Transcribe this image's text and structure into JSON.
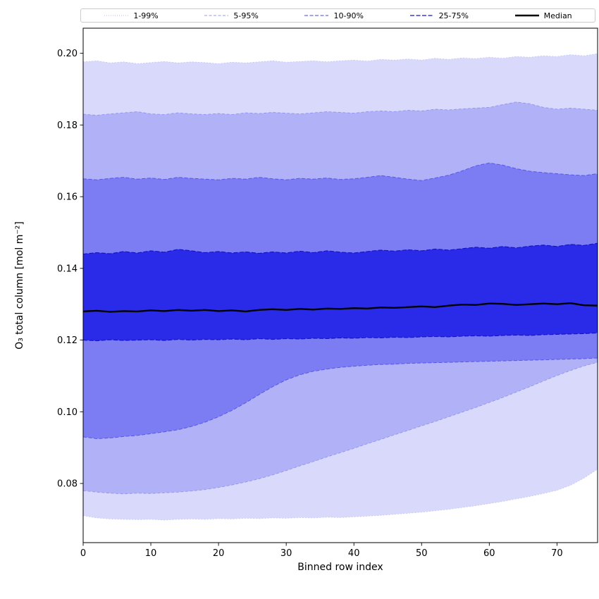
{
  "chart_data": {
    "type": "area",
    "title": "",
    "xlabel": "Binned row index",
    "ylabel": "O₃ total column [mol m⁻²]",
    "axes": {
      "xlim": [
        0,
        76
      ],
      "ylim": [
        0.0635,
        0.207
      ],
      "xticks": [
        0,
        10,
        20,
        30,
        40,
        50,
        60,
        70
      ],
      "yticks": [
        0.08,
        0.1,
        0.12,
        0.14,
        0.16,
        0.18,
        0.2
      ],
      "ytick_labels": [
        "0.08",
        "0.10",
        "0.12",
        "0.14",
        "0.16",
        "0.18",
        "0.20"
      ],
      "grid": false,
      "legend_position": "top"
    },
    "x": [
      0,
      2,
      4,
      6,
      8,
      10,
      12,
      14,
      16,
      18,
      20,
      22,
      24,
      26,
      28,
      30,
      32,
      34,
      36,
      38,
      40,
      42,
      44,
      46,
      48,
      50,
      52,
      54,
      56,
      58,
      60,
      62,
      64,
      66,
      68,
      70,
      72,
      74,
      76
    ],
    "percentiles": {
      "p01": [
        0.071,
        0.0704,
        0.0701,
        0.07,
        0.0699,
        0.07,
        0.0698,
        0.07,
        0.0701,
        0.07,
        0.0702,
        0.0701,
        0.0703,
        0.0702,
        0.0704,
        0.0703,
        0.0705,
        0.0704,
        0.0706,
        0.0705,
        0.0707,
        0.0709,
        0.0711,
        0.0714,
        0.0717,
        0.072,
        0.0724,
        0.0728,
        0.0733,
        0.0738,
        0.0744,
        0.075,
        0.0757,
        0.0764,
        0.0772,
        0.0781,
        0.0795,
        0.0815,
        0.084
      ],
      "p05": [
        0.078,
        0.0776,
        0.0773,
        0.0771,
        0.0773,
        0.0772,
        0.0774,
        0.0776,
        0.0779,
        0.0783,
        0.0789,
        0.0796,
        0.0804,
        0.0813,
        0.0824,
        0.0836,
        0.0849,
        0.0861,
        0.0874,
        0.0886,
        0.0898,
        0.0911,
        0.0923,
        0.0936,
        0.0948,
        0.0961,
        0.0973,
        0.0986,
        0.0999,
        0.1012,
        0.1026,
        0.104,
        0.1055,
        0.107,
        0.1086,
        0.1101,
        0.1115,
        0.1128,
        0.1138
      ],
      "p10": [
        0.093,
        0.0925,
        0.0927,
        0.0931,
        0.0934,
        0.0939,
        0.0944,
        0.095,
        0.0959,
        0.0971,
        0.0986,
        0.1004,
        0.1025,
        0.1048,
        0.107,
        0.1089,
        0.1103,
        0.1113,
        0.1119,
        0.1124,
        0.1127,
        0.113,
        0.1132,
        0.1133,
        0.1135,
        0.1136,
        0.1137,
        0.1138,
        0.1139,
        0.114,
        0.1141,
        0.1142,
        0.1143,
        0.1144,
        0.1145,
        0.1146,
        0.1147,
        0.1148,
        0.115
      ],
      "p25": [
        0.12,
        0.1198,
        0.1201,
        0.1199,
        0.12,
        0.1201,
        0.1199,
        0.1202,
        0.12,
        0.1202,
        0.1201,
        0.1203,
        0.1201,
        0.1204,
        0.1202,
        0.1204,
        0.1203,
        0.1205,
        0.1204,
        0.1206,
        0.1205,
        0.1207,
        0.1206,
        0.1208,
        0.1207,
        0.1209,
        0.121,
        0.1209,
        0.1211,
        0.1212,
        0.1211,
        0.1213,
        0.1214,
        0.1213,
        0.1215,
        0.1216,
        0.1217,
        0.1218,
        0.122
      ],
      "p75": [
        0.144,
        0.1444,
        0.1441,
        0.1447,
        0.1443,
        0.1449,
        0.1445,
        0.1453,
        0.1449,
        0.1444,
        0.1447,
        0.1443,
        0.1446,
        0.1442,
        0.1446,
        0.1443,
        0.1448,
        0.1444,
        0.1449,
        0.1445,
        0.1443,
        0.1447,
        0.1451,
        0.1448,
        0.1452,
        0.1449,
        0.1454,
        0.1451,
        0.1455,
        0.1459,
        0.1456,
        0.1461,
        0.1457,
        0.1462,
        0.1465,
        0.1461,
        0.1467,
        0.1464,
        0.147
      ],
      "p90": [
        0.165,
        0.1647,
        0.1651,
        0.1654,
        0.1649,
        0.1652,
        0.1648,
        0.1654,
        0.1651,
        0.1649,
        0.1647,
        0.1651,
        0.1649,
        0.1654,
        0.165,
        0.1647,
        0.1651,
        0.1649,
        0.1652,
        0.1648,
        0.165,
        0.1654,
        0.1659,
        0.1654,
        0.1649,
        0.1645,
        0.1652,
        0.166,
        0.1672,
        0.1686,
        0.1694,
        0.1688,
        0.1678,
        0.1671,
        0.1667,
        0.1664,
        0.1661,
        0.1659,
        0.1664
      ],
      "p95": [
        0.183,
        0.1827,
        0.1831,
        0.1834,
        0.1837,
        0.1831,
        0.1829,
        0.1834,
        0.1831,
        0.1829,
        0.1832,
        0.1829,
        0.1834,
        0.1832,
        0.1835,
        0.1833,
        0.1831,
        0.1834,
        0.1837,
        0.1835,
        0.1833,
        0.1837,
        0.1839,
        0.1837,
        0.1841,
        0.1839,
        0.1844,
        0.1842,
        0.1845,
        0.1847,
        0.1849,
        0.1857,
        0.1864,
        0.1859,
        0.1849,
        0.1844,
        0.1847,
        0.1844,
        0.1841
      ],
      "p99": [
        0.1976,
        0.1979,
        0.1973,
        0.1976,
        0.1971,
        0.1974,
        0.1977,
        0.1973,
        0.1976,
        0.1974,
        0.1971,
        0.1975,
        0.1973,
        0.1976,
        0.1979,
        0.1975,
        0.1977,
        0.1979,
        0.1976,
        0.1979,
        0.1981,
        0.1978,
        0.1983,
        0.1981,
        0.1984,
        0.1981,
        0.1986,
        0.1983,
        0.1987,
        0.1985,
        0.1989,
        0.1986,
        0.1991,
        0.1989,
        0.1993,
        0.1991,
        0.1996,
        0.1993,
        0.1999
      ]
    },
    "median": [
      0.128,
      0.1282,
      0.1279,
      0.1281,
      0.128,
      0.1283,
      0.1281,
      0.1284,
      0.1282,
      0.1284,
      0.1281,
      0.1283,
      0.128,
      0.1284,
      0.1286,
      0.1284,
      0.1287,
      0.1285,
      0.1288,
      0.1287,
      0.1289,
      0.1288,
      0.1291,
      0.129,
      0.1292,
      0.1294,
      0.1292,
      0.1296,
      0.1299,
      0.1298,
      0.1302,
      0.1301,
      0.1298,
      0.13,
      0.1302,
      0.13,
      0.1303,
      0.1297,
      0.1296
    ],
    "bands": [
      {
        "label": "1-99%",
        "lower": "p01",
        "upper": "p99",
        "fill": "#d9d9fb",
        "line": "#c2c2f5",
        "dash": "1.5 2.6",
        "lw": 0.9
      },
      {
        "label": "5-95%",
        "lower": "p05",
        "upper": "p95",
        "fill": "#b1b1f8",
        "line": "#9393f1",
        "dash": "4 2.6",
        "lw": 0.9
      },
      {
        "label": "10-90%",
        "lower": "p10",
        "upper": "p90",
        "fill": "#7c7cf3",
        "line": "#5757ec",
        "dash": "5 2.6",
        "lw": 1
      },
      {
        "label": "25-75%",
        "lower": "p25",
        "upper": "p75",
        "fill": "#2a2ae9",
        "line": "#1212c4",
        "dash": "6 2.6",
        "lw": 1.1
      }
    ],
    "median_style": {
      "label": "Median",
      "color": "#000000",
      "lw": 2.4
    },
    "legend": [
      {
        "label": "1-99%",
        "color": "#b9b9f0",
        "dash": "1 2",
        "lw": 1
      },
      {
        "label": "5-95%",
        "color": "#9a9af0",
        "dash": "4 2.5",
        "lw": 1
      },
      {
        "label": "10-90%",
        "color": "#6a6aee",
        "dash": "5 2.5",
        "lw": 1.2
      },
      {
        "label": "25-75%",
        "color": "#3a3ad8",
        "dash": "6 2.5",
        "lw": 1.4
      },
      {
        "label": "Median",
        "color": "#000000",
        "dash": "none",
        "lw": 2.5
      }
    ],
    "colors": {
      "accent": "#0000ff",
      "background": "#ffffff"
    }
  }
}
